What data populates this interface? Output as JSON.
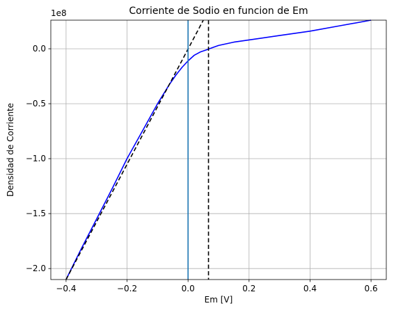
{
  "chart_data": {
    "type": "line",
    "title": "Corriente de Sodio en funcion de Em",
    "xlabel": "Em [V]",
    "ylabel": "Densidad de Corriente",
    "y_scale_label": "1e8",
    "xlim": [
      -0.45,
      0.65
    ],
    "ylim": [
      -2.1,
      0.26
    ],
    "grid": true,
    "x_ticks": [
      -0.4,
      -0.2,
      0.0,
      0.2,
      0.4,
      0.6
    ],
    "x_tick_labels": [
      "−0.4",
      "−0.2",
      "0.0",
      "0.2",
      "0.4",
      "0.6"
    ],
    "y_ticks": [
      -2.0,
      -1.5,
      -1.0,
      -0.5,
      0.0
    ],
    "y_tick_labels": [
      "−2.0",
      "−1.5",
      "−1.0",
      "−0.5",
      "0.0"
    ],
    "series": [
      {
        "color": "#0000ff",
        "style": "solid",
        "x": [
          -0.4,
          -0.35,
          -0.3,
          -0.25,
          -0.2,
          -0.15,
          -0.1,
          -0.08,
          -0.06,
          -0.04,
          -0.02,
          0.0,
          0.02,
          0.04,
          0.06,
          0.08,
          0.1,
          0.15,
          0.2,
          0.3,
          0.4,
          0.5,
          0.6
        ],
        "y": [
          -2.1,
          -1.82,
          -1.55,
          -1.28,
          -1.0,
          -0.75,
          -0.5,
          -0.41,
          -0.32,
          -0.24,
          -0.17,
          -0.11,
          -0.06,
          -0.03,
          -0.01,
          0.01,
          0.03,
          0.06,
          0.08,
          0.12,
          0.16,
          0.21,
          0.26
        ]
      },
      {
        "color": "#000000",
        "style": "dashed",
        "x": [
          -0.4,
          0.05
        ],
        "y": [
          -2.1,
          0.26
        ]
      },
      {
        "color": "#1f77b4",
        "style": "solid",
        "orientation": "vertical",
        "x_value": 0.0
      },
      {
        "color": "#000000",
        "style": "dashed",
        "orientation": "vertical",
        "x_value": 0.067
      }
    ]
  }
}
